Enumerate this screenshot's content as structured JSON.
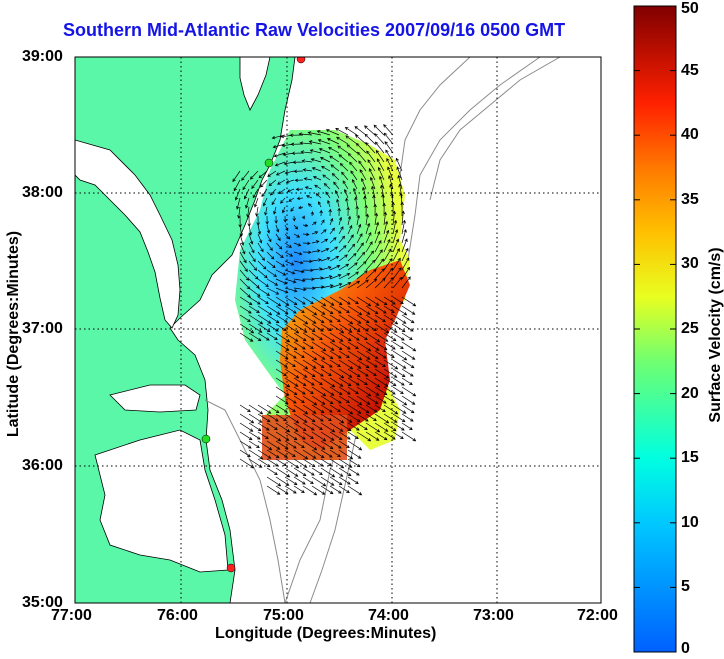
{
  "title": "Southern Mid-Atlantic Raw Velocities 2007/09/16 0500 GMT",
  "map": {
    "xlabel": "Longitude (Degrees:Minutes)",
    "ylabel": "Latitude (Degrees:Minutes)",
    "x_ticks": [
      "77:00",
      "76:00",
      "75:00",
      "74:00",
      "73:00",
      "72:00"
    ],
    "y_ticks": [
      "39:00",
      "38:00",
      "37:00",
      "36:00",
      "35:00"
    ],
    "lon_range": [
      -77,
      -72
    ],
    "lat_range": [
      35,
      39
    ],
    "grid": true,
    "colors": {
      "land": "#5af7a8",
      "ocean": "#ffffff",
      "coast": "#000000",
      "bathymetry": "#8c8c8c"
    }
  },
  "colorbar": {
    "label": "Surface Velocity (cm/s)",
    "ticks": [
      "50",
      "45",
      "40",
      "35",
      "30",
      "25",
      "20",
      "15",
      "10",
      "5",
      "0"
    ],
    "range": [
      0,
      50
    ]
  },
  "stations": [
    {
      "status": "operational-green",
      "color": "#22dd22"
    },
    {
      "status": "operational-green",
      "color": "#22dd22"
    },
    {
      "status": "offline-red",
      "color": "#ff2020"
    },
    {
      "status": "offline-red",
      "color": "#ff2020"
    }
  ]
}
